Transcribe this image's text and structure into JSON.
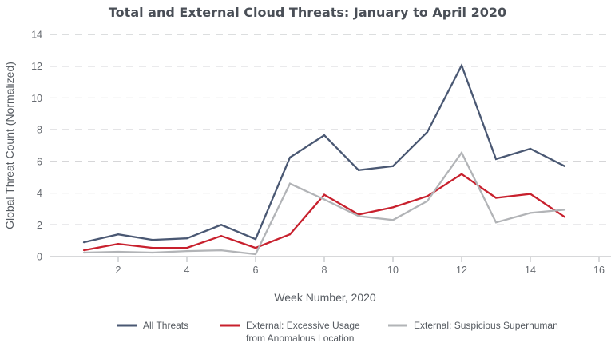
{
  "chart_data": {
    "type": "line",
    "title": "Total and External Cloud Threats: January to April 2020",
    "xlabel": "Week Number, 2020",
    "ylabel": "Global Threat Count (Normalized)",
    "xlim": [
      0,
      16
    ],
    "ylim": [
      0,
      14
    ],
    "xticks": [
      2,
      4,
      6,
      8,
      10,
      12,
      14,
      16
    ],
    "yticks": [
      0,
      2,
      4,
      6,
      8,
      10,
      12,
      14
    ],
    "grid": "horizontal-dashed",
    "legend_position": "bottom",
    "x": [
      1,
      2,
      3,
      4,
      5,
      6,
      7,
      8,
      9,
      10,
      11,
      12,
      13,
      14,
      15
    ],
    "series": [
      {
        "name": "All Threats",
        "color": "#4a5873",
        "values": [
          0.9,
          1.4,
          1.05,
          1.15,
          2.0,
          1.1,
          6.25,
          7.65,
          5.45,
          5.7,
          7.85,
          12.05,
          6.15,
          6.8,
          5.7
        ]
      },
      {
        "name": "External: Excessive Usage from Anomalous Location",
        "legend_lines": [
          "External: Excessive Usage",
          "from Anomalous Location"
        ],
        "color": "#c8202d",
        "values": [
          0.4,
          0.8,
          0.55,
          0.55,
          1.3,
          0.55,
          1.4,
          3.9,
          2.65,
          3.1,
          3.8,
          5.2,
          3.7,
          3.95,
          2.5
        ]
      },
      {
        "name": "External: Suspicious Superhuman",
        "color": "#b2b4b7",
        "values": [
          0.25,
          0.3,
          0.25,
          0.35,
          0.4,
          0.15,
          4.6,
          3.6,
          2.55,
          2.3,
          3.5,
          6.55,
          2.15,
          2.75,
          2.95
        ]
      }
    ]
  }
}
